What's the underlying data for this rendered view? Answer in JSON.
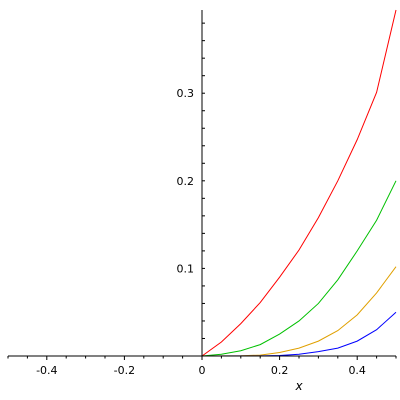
{
  "chart_data": {
    "type": "line",
    "title": "",
    "xlabel": "x",
    "ylabel": "",
    "xlim": [
      -0.5,
      0.5
    ],
    "ylim": [
      0,
      0.395
    ],
    "x_ticks": [
      {
        "value": -0.4,
        "label": "-0.4"
      },
      {
        "value": -0.2,
        "label": "-0.2"
      },
      {
        "value": 0,
        "label": "0"
      },
      {
        "value": 0.2,
        "label": "0.2"
      },
      {
        "value": 0.4,
        "label": "0.4"
      }
    ],
    "y_ticks": [
      {
        "value": 0.1,
        "label": "0.1"
      },
      {
        "value": 0.2,
        "label": "0.2"
      },
      {
        "value": 0.3,
        "label": "0.3"
      }
    ],
    "grid": false,
    "legend": "none",
    "series": [
      {
        "color": "#ff0000",
        "points": [
          [
            -0.5,
            0
          ],
          [
            0,
            0
          ],
          [
            0.05,
            0.016
          ],
          [
            0.1,
            0.037
          ],
          [
            0.15,
            0.061
          ],
          [
            0.2,
            0.09
          ],
          [
            0.25,
            0.121
          ],
          [
            0.3,
            0.158
          ],
          [
            0.35,
            0.2
          ],
          [
            0.4,
            0.247
          ],
          [
            0.45,
            0.301
          ],
          [
            0.5,
            0.395
          ]
        ]
      },
      {
        "color": "#00c000",
        "points": [
          [
            -0.5,
            0
          ],
          [
            0,
            0
          ],
          [
            0.05,
            0.002
          ],
          [
            0.1,
            0.006
          ],
          [
            0.15,
            0.013
          ],
          [
            0.2,
            0.025
          ],
          [
            0.25,
            0.04
          ],
          [
            0.3,
            0.06
          ],
          [
            0.35,
            0.087
          ],
          [
            0.4,
            0.12
          ],
          [
            0.45,
            0.155
          ],
          [
            0.5,
            0.2
          ]
        ]
      },
      {
        "color": "#e0a000",
        "points": [
          [
            -0.5,
            0
          ],
          [
            0,
            0
          ],
          [
            0.1,
            0.0003
          ],
          [
            0.15,
            0.001
          ],
          [
            0.2,
            0.004
          ],
          [
            0.25,
            0.009
          ],
          [
            0.3,
            0.017
          ],
          [
            0.35,
            0.029
          ],
          [
            0.4,
            0.047
          ],
          [
            0.45,
            0.072
          ],
          [
            0.5,
            0.102
          ]
        ]
      },
      {
        "color": "#0000ff",
        "points": [
          [
            -0.5,
            0
          ],
          [
            0,
            0
          ],
          [
            0.15,
            0.0001
          ],
          [
            0.2,
            0.0005
          ],
          [
            0.25,
            0.002
          ],
          [
            0.3,
            0.005
          ],
          [
            0.35,
            0.009
          ],
          [
            0.4,
            0.017
          ],
          [
            0.45,
            0.03
          ],
          [
            0.5,
            0.05
          ]
        ]
      }
    ]
  }
}
